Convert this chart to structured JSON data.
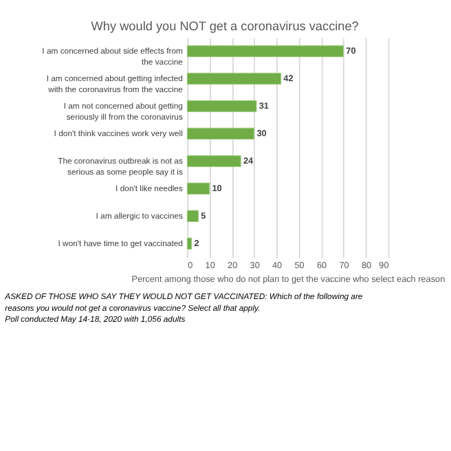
{
  "chart_data": {
    "type": "bar",
    "orientation": "horizontal",
    "title": "Why would you NOT get a coronavirus vaccine?",
    "categories": [
      "I am concerned about side effects from the vaccine",
      "I am concerned about getting infected with the coronavirus from the vaccine",
      "I am not concerned about getting seriously ill from the coronavirus",
      "I don't think vaccines work very well",
      "The coronavirus outbreak is not as serious as some people say it is",
      "I don't like needles",
      "I am allergic to vaccines",
      "I won't have time to get vaccinated"
    ],
    "values": [
      70,
      42,
      31,
      30,
      24,
      10,
      5,
      2
    ],
    "color": "#70ad47",
    "data_labels": true,
    "xlim": [
      0,
      90
    ],
    "xticks": [
      0,
      10,
      20,
      30,
      40,
      50,
      60,
      70,
      80,
      90
    ],
    "grid": "x",
    "xlabel": "Percent among those who do not plan to get the vaccine who select each reason",
    "annotations": [
      "ASKED OF THOSE WHO SAY THEY WOULD NOT GET VACCINATED: Which of the following are reasons you would not get a coronavirus vaccine? Select all that apply.",
      "Poll conducted May 14-18, 2020 with 1,056 adults"
    ]
  }
}
